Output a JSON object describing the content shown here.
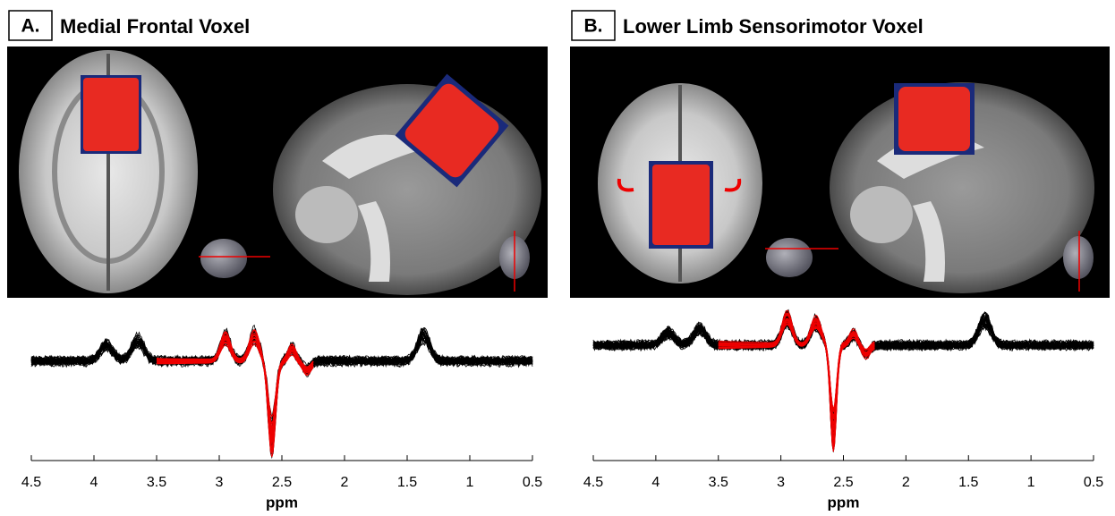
{
  "panels": [
    {
      "label": "A.",
      "title": "Medial Frontal Voxel",
      "xlabel": "ppm",
      "xlim": [
        4.5,
        0.5
      ],
      "xticks": [
        4.5,
        4,
        3.5,
        3,
        2.5,
        2,
        1.5,
        1,
        0.5
      ]
    },
    {
      "label": "B.",
      "title": "Lower Limb Sensorimotor Voxel",
      "xlabel": "ppm",
      "xlim": [
        4.5,
        0.5
      ],
      "xticks": [
        4.5,
        4,
        3.5,
        3,
        2.5,
        2,
        1.5,
        1,
        0.5
      ]
    }
  ]
}
